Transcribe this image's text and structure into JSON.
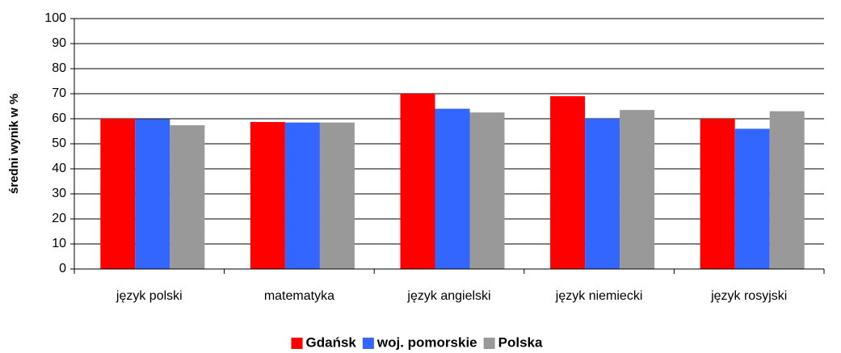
{
  "chart_data": {
    "type": "bar",
    "ylabel": "średni wynik w %",
    "categories": [
      "język polski",
      "matematyka",
      "język angielski",
      "język niemiecki",
      "język rosyjski"
    ],
    "series": [
      {
        "name": "Gdańsk",
        "color": "#ff0000",
        "values": [
          60,
          58.7,
          70,
          69,
          60
        ]
      },
      {
        "name": "woj. pomorskie",
        "color": "#3366ff",
        "values": [
          59.8,
          58.5,
          64,
          60,
          56
        ]
      },
      {
        "name": "Polska",
        "color": "#999999",
        "values": [
          57.4,
          58.5,
          62.5,
          63.5,
          63
        ]
      }
    ],
    "ylim": [
      0,
      100
    ],
    "yticks": [
      0,
      10,
      20,
      30,
      40,
      50,
      60,
      70,
      80,
      90,
      100
    ],
    "grid": true,
    "legend": "bottom"
  }
}
